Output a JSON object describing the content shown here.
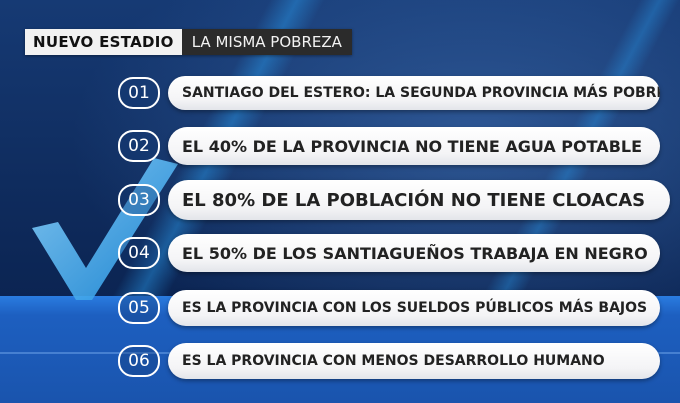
{
  "header": {
    "title": "NUEVO ESTADIO",
    "subtitle": "LA MISMA POBREZA"
  },
  "items": [
    {
      "number": "01",
      "text": "SANTIAGO DEL ESTERO: LA SEGUNDA PROVINCIA MÁS POBRE"
    },
    {
      "number": "02",
      "text": "EL 40% DE LA PROVINCIA NO TIENE AGUA POTABLE"
    },
    {
      "number": "03",
      "text": "EL 80% DE LA POBLACIÓN NO TIENE CLOACAS"
    },
    {
      "number": "04",
      "text": "EL 50% DE LOS SANTIAGUEÑOS TRABAJA EN NEGRO"
    },
    {
      "number": "05",
      "text": "ES LA PROVINCIA CON LOS SUELDOS PÚBLICOS MÁS BAJOS"
    },
    {
      "number": "06",
      "text": "ES LA PROVINCIA CON MENOS DESARROLLO HUMANO"
    }
  ],
  "colors": {
    "background": "#0f2c5e",
    "floor": "#1d5fc0",
    "accent": "#2aa3e6",
    "pill": "#ffffff"
  }
}
